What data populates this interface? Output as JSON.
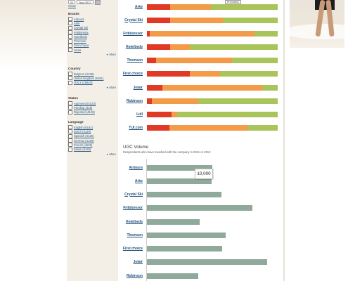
{
  "date_filter": {
    "day": "01",
    "month_year": "Aug 2012"
  },
  "sidebar": {
    "clear_label": "Clear",
    "facets": [
      {
        "title": "Brands",
        "options": [
          "Airtours",
          "Arke",
          "Crystal Ski",
          "Fritidsresor",
          "Hotelbeds",
          "Thomson",
          "First choice",
          "Jetair"
        ],
        "more": "More"
      },
      {
        "title": "Country",
        "options": [
          "Belgium (4128)",
          "United kingdom (6181)",
          "ITALY (19910)"
        ],
        "more": "More"
      },
      {
        "title": "Status",
        "options": [
          "Approved (4123)",
          "Pending (425)",
          "Rejected (4128)"
        ],
        "more": null
      },
      {
        "title": "Language",
        "options": [
          "English (6181)",
          "Dutch (4129)",
          "Spanish (4125)",
          "German (4128)",
          "French (4125)",
          "Italian (4125)"
        ],
        "more": "More"
      }
    ]
  },
  "legend_tag": "Promoters",
  "colors": {
    "detractors": "#e03a26",
    "passives": "#f39b49",
    "promoters": "#a9c45a",
    "ugc_bar": "#8fa99b",
    "link": "#1d4e7a"
  },
  "chart_data": [
    {
      "type": "bar",
      "stacked": true,
      "orientation": "horizontal",
      "title": "",
      "categories": [
        "Arke",
        "Crystal Ski",
        "Fritidsresor",
        "Hotelbeds",
        "Thomson",
        "First choice",
        "Jetair",
        "Robinson",
        "Lidl",
        "TUI.com"
      ],
      "series": [
        {
          "values": [
            18,
            18,
            2,
            18,
            7,
            33,
            12,
            4,
            19,
            17
          ]
        },
        {
          "values": [
            31,
            40,
            80,
            15,
            58,
            23,
            76,
            35,
            4,
            60
          ]
        },
        {
          "values": [
            51,
            42,
            18,
            67,
            35,
            44,
            12,
            61,
            77,
            23
          ]
        }
      ]
    },
    {
      "type": "bar",
      "orientation": "horizontal",
      "title": "UGC Volume",
      "subtitle": "Respondents who have travelled with the company in 2011 or 2012",
      "categories": [
        "Airtours",
        "Arke",
        "Crystal Ski",
        "Fritidsresor",
        "Hotelbeds",
        "Thomson",
        "First choice",
        "Jetair",
        "Robinson"
      ],
      "values": [
        10000,
        9900,
        11400,
        16100,
        8100,
        12000,
        11500,
        18400,
        7900
      ],
      "xlim": [
        0,
        20000
      ],
      "tooltip": "10,000"
    }
  ]
}
